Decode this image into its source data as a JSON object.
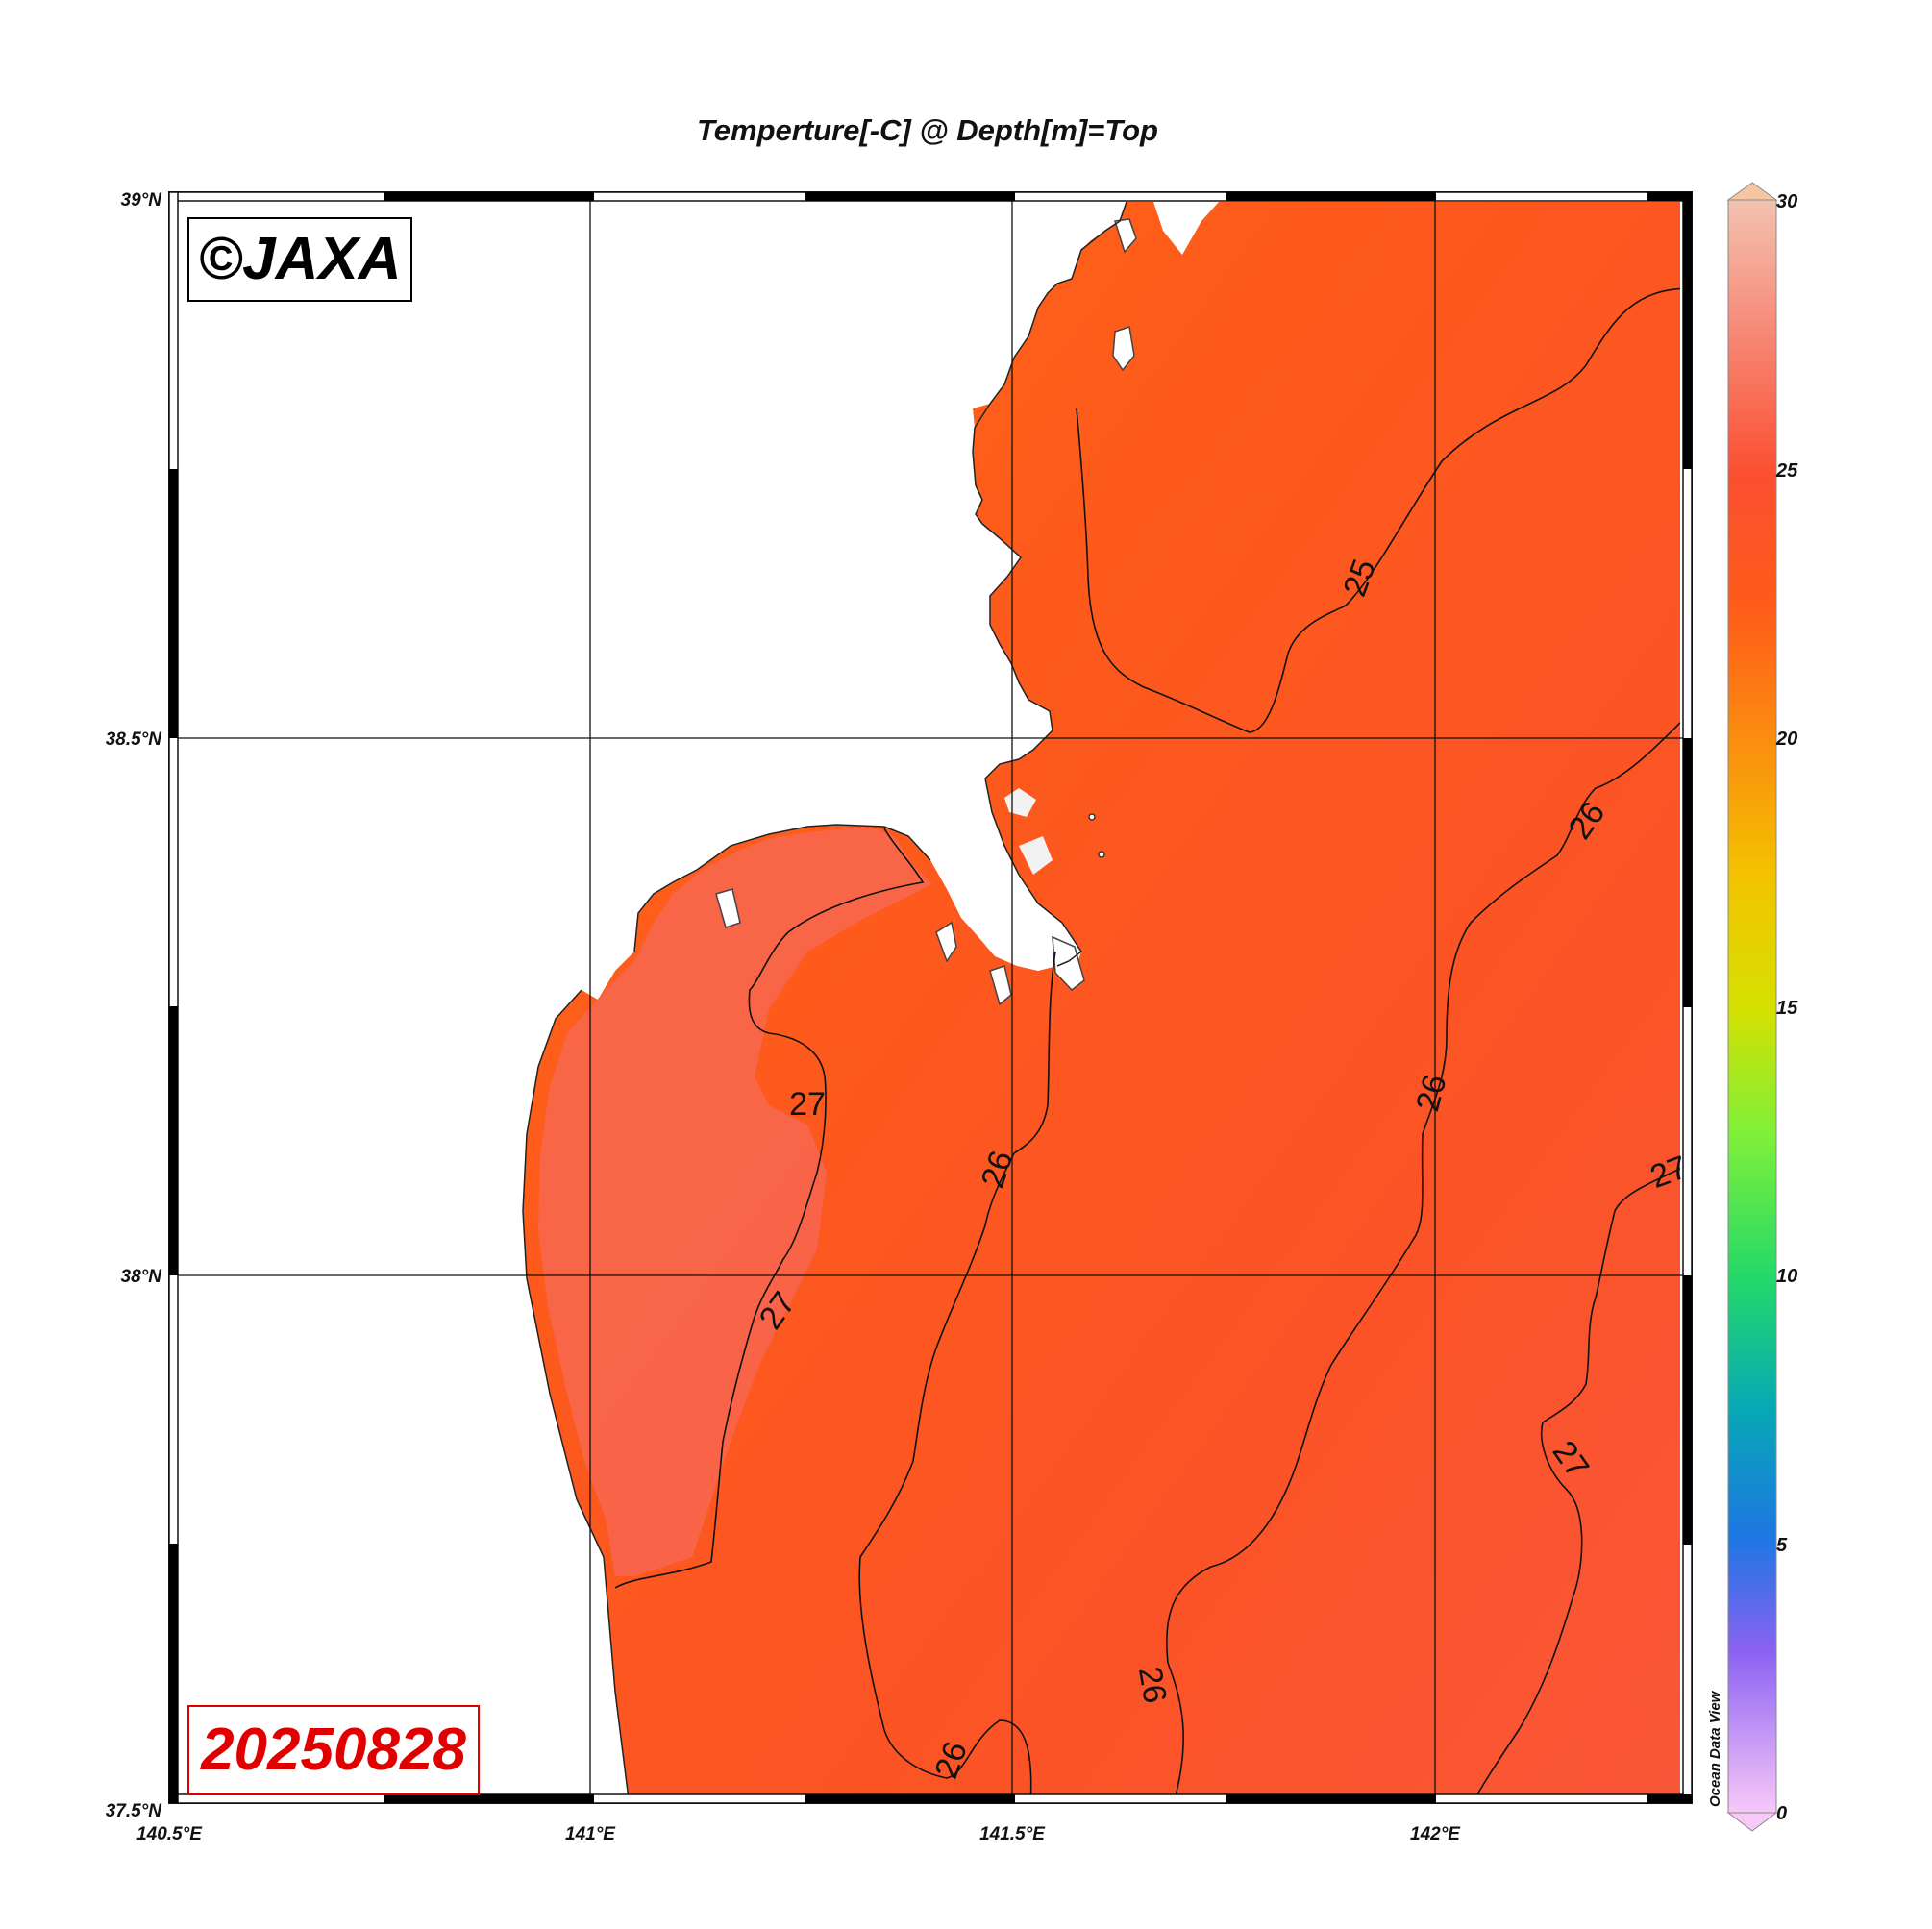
{
  "title": "Temperture[-C] @ Depth[m]=Top",
  "watermark": "©JAXA",
  "date_label": "20250828",
  "credit": "Ocean Data View",
  "axes": {
    "x_ticks": [
      "140.5°E",
      "141°E",
      "141.5°E",
      "142°E"
    ],
    "y_ticks": [
      "39°N",
      "38.5°N",
      "38°N",
      "37.5°N"
    ],
    "lon_range": [
      140.5,
      142.3
    ],
    "lat_range": [
      37.5,
      39.0
    ]
  },
  "colorbar": {
    "ticks": [
      "30",
      "25",
      "20",
      "15",
      "10",
      "5",
      "0"
    ],
    "range": [
      0,
      30
    ],
    "colors": [
      "#f4b3a0",
      "#fb5b3c",
      "#ff5a1a",
      "#f7c400",
      "#86f03c",
      "#0bb59a",
      "#1e78e0",
      "#8c5ef0",
      "#f5b8f5"
    ]
  },
  "contour_labels": [
    "25",
    "26",
    "26",
    "26",
    "26",
    "26",
    "27",
    "27",
    "27",
    "27"
  ],
  "colors": {
    "land": "#ffffff",
    "sea_cool": "#ff6a10",
    "sea_mid": "#fc5223",
    "sea_warm": "#f8644a",
    "contour": "#111111"
  }
}
